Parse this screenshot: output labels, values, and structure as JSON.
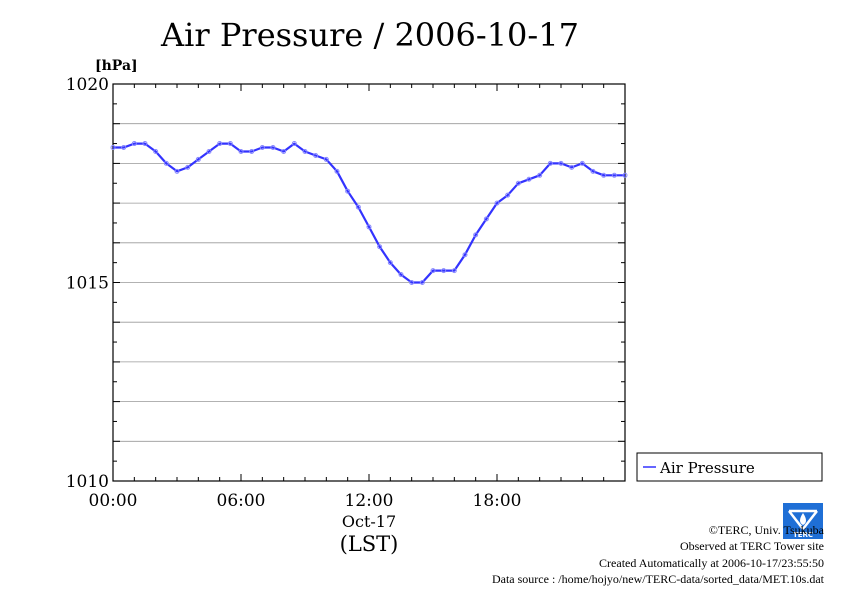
{
  "chart_data": {
    "type": "line",
    "title": "Air Pressure / 2006-10-17",
    "ylabel": "[hPa]",
    "xlabel_date": "Oct-17",
    "xlabel_tz": "(LST)",
    "ylim": [
      1010,
      1020
    ],
    "xlim": [
      0,
      24
    ],
    "y_ticks": [
      1010,
      1015,
      1020
    ],
    "y_tick_labels": [
      "1010",
      "1015",
      "1020"
    ],
    "x_ticks": [
      0,
      6,
      12,
      18
    ],
    "x_tick_labels": [
      "00:00",
      "06:00",
      "12:00",
      "18:00"
    ],
    "grid": true,
    "legend_position": "bottom-right outside",
    "series": [
      {
        "name": "Air Pressure",
        "color": "#3333ff",
        "x": [
          0,
          0.5,
          1,
          1.5,
          2,
          2.5,
          3,
          3.5,
          4,
          4.5,
          5,
          5.5,
          6,
          6.5,
          7,
          7.5,
          8,
          8.5,
          9,
          9.5,
          10,
          10.5,
          11,
          11.5,
          12,
          12.5,
          13,
          13.5,
          14,
          14.5,
          15,
          15.5,
          16,
          16.5,
          17,
          17.5,
          18,
          18.5,
          19,
          19.5,
          20,
          20.5,
          21,
          21.5,
          22,
          22.5,
          23,
          23.5,
          24
        ],
        "y": [
          1018.4,
          1018.4,
          1018.5,
          1018.5,
          1018.3,
          1018.0,
          1017.8,
          1017.9,
          1018.1,
          1018.3,
          1018.5,
          1018.5,
          1018.3,
          1018.3,
          1018.4,
          1018.4,
          1018.3,
          1018.5,
          1018.3,
          1018.2,
          1018.1,
          1017.8,
          1017.3,
          1016.9,
          1016.4,
          1015.9,
          1015.5,
          1015.2,
          1015.0,
          1015.0,
          1015.3,
          1015.3,
          1015.3,
          1015.7,
          1016.2,
          1016.6,
          1017.0,
          1017.2,
          1017.5,
          1017.6,
          1017.7,
          1018.0,
          1018.0,
          1017.9,
          1018.0,
          1017.8,
          1017.7,
          1017.7,
          1017.7
        ]
      }
    ]
  },
  "footer": {
    "copyright": "©TERC, Univ. Tsukuba",
    "observed": "Observed at TERC Tower site",
    "created": "Created Automatically at 2006-10-17/23:55:50",
    "source": "Data source : /home/hojyo/new/TERC-data/sorted_data/MET.10s.dat"
  },
  "logo_text": "TERC"
}
